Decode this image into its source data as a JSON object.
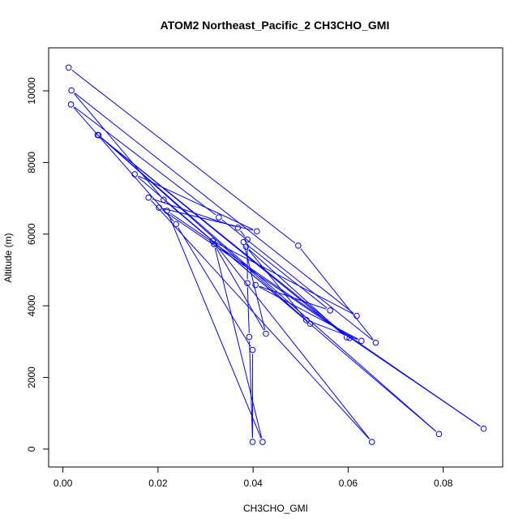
{
  "chart_data": {
    "type": "line",
    "title": "ATOM2 Northeast_Pacific_2 CH3CHO_GMI",
    "xlabel": "CH3CHO_GMI",
    "ylabel": "Altitude (m)",
    "xlim": [
      -0.003,
      0.0925
    ],
    "ylim": [
      -500,
      11200
    ],
    "xticks": [
      0.0,
      0.02,
      0.04,
      0.06,
      0.08
    ],
    "xtick_labels": [
      "0.00",
      "0.02",
      "0.04",
      "0.06",
      "0.08"
    ],
    "yticks": [
      0,
      2000,
      4000,
      6000,
      8000,
      10000
    ],
    "ytick_labels": [
      "0",
      "2000",
      "4000",
      "6000",
      "8000",
      "10000"
    ],
    "grid": false,
    "color": "#0000ff",
    "marker": "open-circle",
    "series": [
      {
        "points": [
          {
            "x": 0.0012,
            "y": 10650
          },
          {
            "x": 0.0495,
            "y": 5680
          },
          {
            "x": 0.0658,
            "y": 2970
          },
          {
            "x": 0.0328,
            "y": 6470
          },
          {
            "x": 0.0017,
            "y": 9620
          },
          {
            "x": 0.0238,
            "y": 6280
          },
          {
            "x": 0.0399,
            "y": 2770
          },
          {
            "x": 0.0399,
            "y": 200
          },
          {
            "x": 0.0392,
            "y": 3130
          },
          {
            "x": 0.0388,
            "y": 4630
          },
          {
            "x": 0.0388,
            "y": 5850
          },
          {
            "x": 0.0368,
            "y": 6180
          },
          {
            "x": 0.018,
            "y": 7020
          },
          {
            "x": 0.065,
            "y": 200
          },
          {
            "x": 0.0315,
            "y": 5810
          },
          {
            "x": 0.0618,
            "y": 3720
          },
          {
            "x": 0.0018,
            "y": 10010
          },
          {
            "x": 0.0212,
            "y": 6960
          },
          {
            "x": 0.052,
            "y": 3500
          },
          {
            "x": 0.0075,
            "y": 8760
          },
          {
            "x": 0.0791,
            "y": 420
          },
          {
            "x": 0.0151,
            "y": 7670
          },
          {
            "x": 0.0408,
            "y": 6080
          },
          {
            "x": 0.0202,
            "y": 6740
          },
          {
            "x": 0.0885,
            "y": 570
          },
          {
            "x": 0.0219,
            "y": 6650
          },
          {
            "x": 0.042,
            "y": 200
          },
          {
            "x": 0.0318,
            "y": 5720
          },
          {
            "x": 0.0427,
            "y": 3220
          },
          {
            "x": 0.038,
            "y": 5780
          },
          {
            "x": 0.0562,
            "y": 3870
          },
          {
            "x": 0.0405,
            "y": 4580
          },
          {
            "x": 0.0628,
            "y": 3020
          },
          {
            "x": 0.0512,
            "y": 3600
          },
          {
            "x": 0.0385,
            "y": 5650
          },
          {
            "x": 0.0597,
            "y": 3120
          },
          {
            "x": 0.0073,
            "y": 8770
          },
          {
            "x": 0.0603,
            "y": 3100
          }
        ]
      }
    ]
  }
}
